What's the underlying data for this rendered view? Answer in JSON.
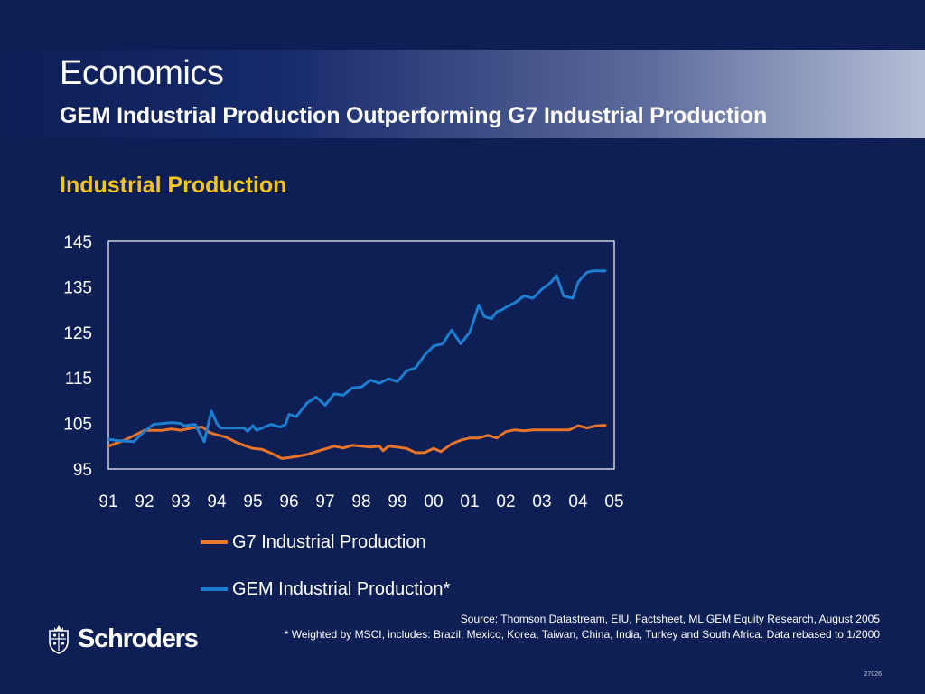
{
  "header": {
    "title": "Economics",
    "subtitle": "GEM Industrial Production Outperforming G7 Industrial Production"
  },
  "chart_heading": "Industrial Production",
  "chart_data": {
    "type": "line",
    "title": "Industrial Production",
    "xlabel": "",
    "ylabel": "",
    "ylim": [
      95,
      145
    ],
    "yticks": [
      "95",
      "105",
      "115",
      "125",
      "135",
      "145"
    ],
    "xlim": [
      1991,
      2005
    ],
    "xticks": [
      "91",
      "92",
      "93",
      "94",
      "95",
      "96",
      "97",
      "98",
      "99",
      "00",
      "01",
      "02",
      "03",
      "04",
      "05"
    ],
    "grid": false,
    "legend_position": "bottom",
    "series": [
      {
        "name": "G7 Industrial Production",
        "color": "#e8742a",
        "x": [
          1991.0,
          1991.5,
          1992.0,
          1992.25,
          1992.5,
          1992.75,
          1993.0,
          1993.3,
          1993.6,
          1993.8,
          1994.0,
          1994.25,
          1994.5,
          1994.75,
          1995.0,
          1995.25,
          1995.5,
          1995.8,
          1996.0,
          1996.25,
          1996.5,
          1996.75,
          1997.0,
          1997.25,
          1997.5,
          1997.75,
          1998.0,
          1998.25,
          1998.5,
          1998.6,
          1998.75,
          1999.0,
          1999.25,
          1999.5,
          1999.75,
          2000.0,
          2000.2,
          2000.5,
          2000.75,
          2001.0,
          2001.25,
          2001.5,
          2001.75,
          2002.0,
          2002.25,
          2002.5,
          2002.75,
          2003.0,
          2003.25,
          2003.5,
          2003.75,
          2004.0,
          2004.25,
          2004.5,
          2004.75
        ],
        "values": [
          100.0,
          101.5,
          103.5,
          103.5,
          103.5,
          103.8,
          103.5,
          104.0,
          104.2,
          103.0,
          102.5,
          102.0,
          101.0,
          100.2,
          99.5,
          99.3,
          98.5,
          97.3,
          97.5,
          97.8,
          98.2,
          98.8,
          99.4,
          100.0,
          99.6,
          100.2,
          100.0,
          99.8,
          100.0,
          99.0,
          100.0,
          99.8,
          99.5,
          98.6,
          98.6,
          99.5,
          98.8,
          100.5,
          101.3,
          101.8,
          101.8,
          102.4,
          101.8,
          103.2,
          103.6,
          103.4,
          103.6,
          103.6,
          103.6,
          103.6,
          103.6,
          104.5,
          104.0,
          104.5,
          104.6
        ]
      },
      {
        "name": "GEM Industrial Production*",
        "color": "#1e7fd0",
        "x": [
          1991.0,
          1991.3,
          1991.7,
          1992.0,
          1992.25,
          1992.5,
          1992.75,
          1993.0,
          1993.1,
          1993.4,
          1993.65,
          1993.85,
          1994.0,
          1994.1,
          1994.25,
          1994.5,
          1994.75,
          1994.85,
          1995.0,
          1995.1,
          1995.5,
          1995.75,
          1995.9,
          1996.0,
          1996.2,
          1996.5,
          1996.75,
          1997.0,
          1997.25,
          1997.5,
          1997.75,
          1998.0,
          1998.25,
          1998.5,
          1998.75,
          1999.0,
          1999.25,
          1999.5,
          1999.75,
          2000.0,
          2000.25,
          2000.5,
          2000.75,
          2001.0,
          2001.25,
          2001.4,
          2001.6,
          2001.75,
          2001.9,
          2002.0,
          2002.25,
          2002.5,
          2002.75,
          2003.0,
          2003.25,
          2003.4,
          2003.6,
          2003.85,
          2004.0,
          2004.1,
          2004.25,
          2004.4,
          2004.6,
          2004.75
        ],
        "values": [
          101.5,
          101.2,
          101.0,
          103.3,
          104.8,
          105.0,
          105.2,
          105.0,
          104.5,
          104.8,
          101.0,
          107.7,
          105.0,
          104.0,
          104.0,
          104.0,
          104.0,
          103.3,
          104.5,
          103.5,
          104.8,
          104.2,
          104.8,
          107.0,
          106.5,
          109.5,
          110.8,
          109.0,
          111.5,
          111.2,
          112.8,
          113.0,
          114.5,
          113.8,
          114.8,
          114.2,
          116.5,
          117.2,
          120.0,
          122.0,
          122.5,
          125.5,
          122.5,
          125.0,
          131.0,
          128.5,
          128.0,
          129.5,
          130.0,
          130.5,
          131.5,
          133.0,
          132.5,
          134.5,
          136.0,
          137.5,
          133.0,
          132.5,
          136.0,
          137.0,
          138.2,
          138.5,
          138.5,
          138.5
        ]
      }
    ]
  },
  "legend": [
    {
      "label": "G7 Industrial Production",
      "color": "#e8742a"
    },
    {
      "label": "GEM Industrial Production*",
      "color": "#1e7fd0"
    }
  ],
  "footer": {
    "source": "Source: Thomson Datastream, EIU, Factsheet, ML GEM Equity Research, August 2005",
    "note": "* Weighted by MSCI, includes: Brazil, Mexico, Korea, Taiwan, China, India, Turkey and South Africa. Data rebased to 1/2000",
    "ref": "27026",
    "logo": "Schroders"
  }
}
